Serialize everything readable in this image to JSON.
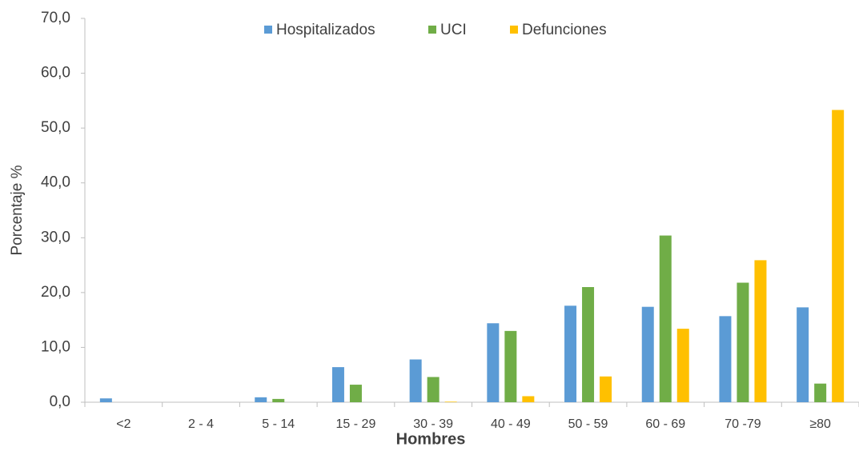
{
  "chart_data": {
    "type": "bar",
    "x_label": "Hombres",
    "y_label": "Porcentaje %",
    "categories": [
      "<2",
      "2 - 4",
      "5 - 14",
      "15 - 29",
      "30 - 39",
      "40 - 49",
      "50 - 59",
      "60 - 69",
      "70 -79",
      "≥80"
    ],
    "series": [
      {
        "name": "Hospitalizados",
        "color": "#5b9bd5",
        "values": [
          0.7,
          0,
          0.9,
          6.4,
          7.8,
          14.4,
          17.6,
          17.4,
          15.7,
          17.3
        ]
      },
      {
        "name": "UCI",
        "color": "#70ad47",
        "values": [
          0,
          0,
          0.6,
          3.2,
          4.6,
          13.0,
          21.0,
          30.4,
          21.8,
          3.4
        ]
      },
      {
        "name": "Defunciones",
        "color": "#ffc000",
        "values": [
          0,
          0,
          0,
          0,
          0.1,
          1.1,
          4.7,
          13.4,
          25.9,
          53.3
        ]
      }
    ],
    "ylim": [
      0,
      70
    ],
    "yticks": [
      {
        "value": 0,
        "label": "0,0"
      },
      {
        "value": 10,
        "label": "10,0"
      },
      {
        "value": 20,
        "label": "20,0"
      },
      {
        "value": 30,
        "label": "30,0"
      },
      {
        "value": 40,
        "label": "40,0"
      },
      {
        "value": 50,
        "label": "50,0"
      },
      {
        "value": 60,
        "label": "60,0"
      },
      {
        "value": 70,
        "label": "70,0"
      }
    ],
    "legend": "top",
    "grid": false
  }
}
